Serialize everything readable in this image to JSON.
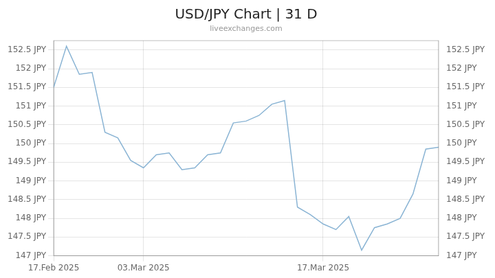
{
  "chart_data": {
    "type": "line",
    "title": "USD/JPY Chart | 31 D",
    "subtitle": "liveexchanges.com",
    "color": "#8ab4d4",
    "grid": true,
    "x": [
      0,
      1,
      2,
      3,
      4,
      5,
      6,
      7,
      8,
      9,
      10,
      11,
      12,
      13,
      14,
      15,
      16,
      17,
      18,
      19,
      20,
      21,
      22,
      23,
      24,
      25,
      26,
      27,
      28,
      29,
      30
    ],
    "values": [
      151.5,
      152.6,
      151.85,
      151.9,
      150.3,
      150.15,
      149.55,
      149.35,
      149.7,
      149.75,
      149.3,
      149.35,
      149.7,
      149.75,
      150.55,
      150.6,
      150.75,
      151.05,
      151.15,
      148.3,
      148.1,
      147.85,
      147.7,
      148.05,
      147.15,
      147.75,
      147.85,
      148.0,
      148.65,
      149.85,
      149.9
    ],
    "xlim": [
      0,
      30
    ],
    "xticks": [
      {
        "value": 0,
        "label": "17.Feb 2025"
      },
      {
        "value": 7,
        "label": "03.Mar 2025"
      },
      {
        "value": 21,
        "label": "17.Mar 2025"
      }
    ],
    "ylim": [
      147.0,
      152.75
    ],
    "yticks": [
      {
        "value": 147.0,
        "label": "147 JPY"
      },
      {
        "value": 147.5,
        "label": "147.5 JPY"
      },
      {
        "value": 148.0,
        "label": "148 JPY"
      },
      {
        "value": 148.5,
        "label": "148.5 JPY"
      },
      {
        "value": 149.0,
        "label": "149 JPY"
      },
      {
        "value": 149.5,
        "label": "149.5 JPY"
      },
      {
        "value": 150.0,
        "label": "150 JPY"
      },
      {
        "value": 150.5,
        "label": "150.5 JPY"
      },
      {
        "value": 151.0,
        "label": "151 JPY"
      },
      {
        "value": 151.5,
        "label": "151.5 JPY"
      },
      {
        "value": 152.0,
        "label": "152 JPY"
      },
      {
        "value": 152.5,
        "label": "152.5 JPY"
      }
    ],
    "y2lim": [
      147.0,
      152.75
    ],
    "y2ticks": [
      {
        "value": 147.0,
        "label": "147 JPY"
      },
      {
        "value": 147.5,
        "label": "147.5 JPY"
      },
      {
        "value": 148.0,
        "label": "148 JPY"
      },
      {
        "value": 148.5,
        "label": "148.5 JPY"
      },
      {
        "value": 149.0,
        "label": "149 JPY"
      },
      {
        "value": 149.5,
        "label": "149.5 JPY"
      },
      {
        "value": 150.0,
        "label": "150 JPY"
      },
      {
        "value": 150.5,
        "label": "150.5 JPY"
      },
      {
        "value": 151.0,
        "label": "151 JPY"
      },
      {
        "value": 151.5,
        "label": "151.5 JPY"
      },
      {
        "value": 152.0,
        "label": "152 JPY"
      },
      {
        "value": 152.5,
        "label": "152.5 JPY"
      }
    ]
  }
}
